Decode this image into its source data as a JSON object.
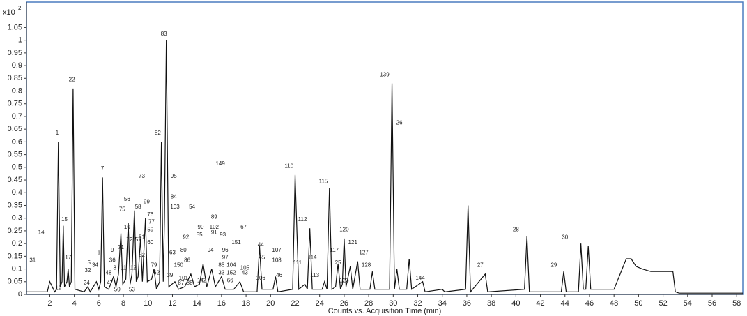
{
  "chart_data": {
    "type": "line",
    "x_label": "Counts vs. Acquisition Time (min)",
    "y_multiplier": "x10",
    "y_multiplier_exp": "2",
    "color": "#111111",
    "frame_color": "#4a7cbf",
    "xlim": [
      0.1,
      58.5
    ],
    "ylim": [
      0,
      1.15
    ],
    "xticks": [
      2,
      4,
      6,
      8,
      10,
      12,
      14,
      16,
      18,
      20,
      22,
      24,
      26,
      28,
      30,
      32,
      34,
      36,
      38,
      40,
      42,
      44,
      46,
      48,
      50,
      52,
      54,
      56,
      58
    ],
    "yticks": [
      0,
      0.05,
      0.1,
      0.15,
      0.2,
      0.25,
      0.3,
      0.35,
      0.4,
      0.45,
      0.5,
      0.55,
      0.6,
      0.65,
      0.7,
      0.75,
      0.8,
      0.85,
      0.9,
      0.95,
      1,
      1.05
    ],
    "x": [
      0.1,
      1.8,
      2.0,
      2.2,
      2.4,
      2.55,
      2.7,
      2.85,
      3.0,
      3.1,
      3.2,
      3.4,
      3.5,
      3.6,
      3.75,
      3.9,
      4.05,
      4.8,
      5.1,
      5.3,
      5.8,
      6.0,
      6.15,
      6.3,
      6.45,
      6.8,
      7.2,
      7.4,
      7.6,
      7.8,
      7.95,
      8.2,
      8.4,
      8.55,
      8.7,
      8.9,
      9.05,
      9.2,
      9.4,
      9.55,
      9.8,
      9.95,
      10.3,
      10.5,
      10.7,
      10.95,
      11.1,
      11.25,
      11.35,
      11.5,
      11.7,
      12.2,
      12.5,
      13.0,
      13.5,
      13.8,
      14.2,
      14.5,
      14.8,
      15.2,
      15.5,
      16.0,
      16.3,
      17.0,
      17.5,
      17.8,
      18.9,
      19.1,
      19.3,
      20.2,
      20.4,
      20.6,
      21.8,
      22.0,
      22.3,
      22.8,
      23.0,
      23.2,
      23.4,
      24.2,
      24.4,
      24.6,
      24.8,
      25.0,
      25.3,
      25.5,
      25.7,
      25.85,
      26.0,
      26.15,
      26.5,
      26.7,
      27.1,
      27.3,
      28.1,
      28.3,
      28.5,
      29.7,
      29.9,
      30.1,
      30.3,
      30.5,
      31.1,
      31.3,
      31.5,
      32.4,
      32.6,
      34,
      34.2,
      35.9,
      36.1,
      36.3,
      37.5,
      37.7,
      40.7,
      40.9,
      41.1,
      43.7,
      43.9,
      44.1,
      45.1,
      45.3,
      45.5,
      45.7,
      45.9,
      46.1,
      48,
      48.5,
      49,
      49.4,
      49.8,
      50.3,
      51,
      52,
      52.8,
      53.0,
      53.3,
      58.5
    ],
    "values": [
      0.01,
      0.01,
      0.05,
      0.03,
      0.01,
      0.02,
      0.6,
      0.03,
      0.05,
      0.27,
      0.03,
      0.05,
      0.1,
      0.03,
      0.05,
      0.81,
      0.02,
      0.01,
      0.03,
      0.01,
      0.05,
      0.02,
      0.05,
      0.46,
      0.03,
      0.02,
      0.07,
      0.03,
      0.08,
      0.24,
      0.04,
      0.06,
      0.28,
      0.04,
      0.08,
      0.33,
      0.05,
      0.07,
      0.22,
      0.05,
      0.3,
      0.05,
      0.06,
      0.1,
      0.02,
      0.05,
      0.6,
      0.05,
      0.3,
      1.0,
      0.03,
      0.05,
      0.02,
      0.03,
      0.08,
      0.03,
      0.04,
      0.12,
      0.03,
      0.1,
      0.03,
      0.07,
      0.02,
      0.02,
      0.05,
      0.01,
      0.01,
      0.19,
      0.02,
      0.02,
      0.07,
      0.01,
      0.02,
      0.47,
      0.02,
      0.04,
      0.02,
      0.26,
      0.02,
      0.02,
      0.05,
      0.02,
      0.42,
      0.02,
      0.03,
      0.12,
      0.02,
      0.04,
      0.22,
      0.03,
      0.11,
      0.02,
      0.13,
      0.02,
      0.02,
      0.09,
      0.02,
      0.02,
      0.83,
      0.02,
      0.1,
      0.02,
      0.02,
      0.14,
      0.02,
      0.05,
      0.01,
      0.02,
      0.01,
      0.02,
      0.35,
      0.01,
      0.08,
      0.01,
      0.02,
      0.23,
      0.01,
      0.01,
      0.09,
      0.01,
      0.01,
      0.2,
      0.02,
      0.02,
      0.19,
      0.02,
      0.02,
      0.08,
      0.14,
      0.14,
      0.11,
      0.1,
      0.09,
      0.09,
      0.09,
      0.01,
      0.005,
      0.005
    ],
    "annotations": [
      {
        "text": "1",
        "x": 2.6,
        "y": 0.62
      },
      {
        "text": "22",
        "x": 3.8,
        "y": 0.83
      },
      {
        "text": "14",
        "x": 1.3,
        "y": 0.23
      },
      {
        "text": "15",
        "x": 3.2,
        "y": 0.28
      },
      {
        "text": "17",
        "x": 3.5,
        "y": 0.13
      },
      {
        "text": "31",
        "x": 0.6,
        "y": 0.12
      },
      {
        "text": "19",
        "x": 2.7,
        "y": 0.01
      },
      {
        "text": "24",
        "x": 5.0,
        "y": 0.03
      },
      {
        "text": "32",
        "x": 5.1,
        "y": 0.08
      },
      {
        "text": "5",
        "x": 5.2,
        "y": 0.11
      },
      {
        "text": "34",
        "x": 5.7,
        "y": 0.1
      },
      {
        "text": "6",
        "x": 6.0,
        "y": 0.15
      },
      {
        "text": "7",
        "x": 6.3,
        "y": 0.48
      },
      {
        "text": "9",
        "x": 7.1,
        "y": 0.16
      },
      {
        "text": "36",
        "x": 7.1,
        "y": 0.12
      },
      {
        "text": "8",
        "x": 7.3,
        "y": 0.09
      },
      {
        "text": "48",
        "x": 6.8,
        "y": 0.07
      },
      {
        "text": "47",
        "x": 6.9,
        "y": 0.03
      },
      {
        "text": "50",
        "x": 7.5,
        "y": 0.005
      },
      {
        "text": "71",
        "x": 7.8,
        "y": 0.17
      },
      {
        "text": "10",
        "x": 8.3,
        "y": 0.25
      },
      {
        "text": "75",
        "x": 7.9,
        "y": 0.32
      },
      {
        "text": "56",
        "x": 8.3,
        "y": 0.36
      },
      {
        "text": "58",
        "x": 9.2,
        "y": 0.33
      },
      {
        "text": "73",
        "x": 9.5,
        "y": 0.45
      },
      {
        "text": "72",
        "x": 8.5,
        "y": 0.2
      },
      {
        "text": "57",
        "x": 9.2,
        "y": 0.2
      },
      {
        "text": "11",
        "x": 8.0,
        "y": 0.09
      },
      {
        "text": "12",
        "x": 8.8,
        "y": 0.09
      },
      {
        "text": "52",
        "x": 9.5,
        "y": 0.14
      },
      {
        "text": "51",
        "x": 9.5,
        "y": 0.21
      },
      {
        "text": "99",
        "x": 9.9,
        "y": 0.35
      },
      {
        "text": "76",
        "x": 10.2,
        "y": 0.3
      },
      {
        "text": "77",
        "x": 10.3,
        "y": 0.27
      },
      {
        "text": "59",
        "x": 10.2,
        "y": 0.24
      },
      {
        "text": "60",
        "x": 10.2,
        "y": 0.19
      },
      {
        "text": "79",
        "x": 10.5,
        "y": 0.1
      },
      {
        "text": "53",
        "x": 8.7,
        "y": 0.005
      },
      {
        "text": "62",
        "x": 10.7,
        "y": 0.07
      },
      {
        "text": "82",
        "x": 10.8,
        "y": 0.62
      },
      {
        "text": "83",
        "x": 11.3,
        "y": 1.01
      },
      {
        "text": "95",
        "x": 12.1,
        "y": 0.45
      },
      {
        "text": "84",
        "x": 12.1,
        "y": 0.37
      },
      {
        "text": "103",
        "x": 12.2,
        "y": 0.33
      },
      {
        "text": "63",
        "x": 12.0,
        "y": 0.15
      },
      {
        "text": "80",
        "x": 12.9,
        "y": 0.16
      },
      {
        "text": "150",
        "x": 12.5,
        "y": 0.1
      },
      {
        "text": "39",
        "x": 11.8,
        "y": 0.06
      },
      {
        "text": "101",
        "x": 12.9,
        "y": 0.05
      },
      {
        "text": "87",
        "x": 12.7,
        "y": 0.03
      },
      {
        "text": "88",
        "x": 13.4,
        "y": 0.03
      },
      {
        "text": "92",
        "x": 13.1,
        "y": 0.21
      },
      {
        "text": "86",
        "x": 13.2,
        "y": 0.12
      },
      {
        "text": "54",
        "x": 13.6,
        "y": 0.33
      },
      {
        "text": "55",
        "x": 14.2,
        "y": 0.22
      },
      {
        "text": "90",
        "x": 14.3,
        "y": 0.25
      },
      {
        "text": "149",
        "x": 15.9,
        "y": 0.5
      },
      {
        "text": "89",
        "x": 15.4,
        "y": 0.29
      },
      {
        "text": "91",
        "x": 15.4,
        "y": 0.23
      },
      {
        "text": "102",
        "x": 15.4,
        "y": 0.25
      },
      {
        "text": "93",
        "x": 16.1,
        "y": 0.22
      },
      {
        "text": "94",
        "x": 15.1,
        "y": 0.16
      },
      {
        "text": "96",
        "x": 16.3,
        "y": 0.16
      },
      {
        "text": "97",
        "x": 16.3,
        "y": 0.13
      },
      {
        "text": "85",
        "x": 16.0,
        "y": 0.1
      },
      {
        "text": "151",
        "x": 17.2,
        "y": 0.19
      },
      {
        "text": "104",
        "x": 16.8,
        "y": 0.1
      },
      {
        "text": "152",
        "x": 16.8,
        "y": 0.07
      },
      {
        "text": "33",
        "x": 16.0,
        "y": 0.07
      },
      {
        "text": "66",
        "x": 16.7,
        "y": 0.04
      },
      {
        "text": "142",
        "x": 14.4,
        "y": 0.04
      },
      {
        "text": "105",
        "x": 17.9,
        "y": 0.09
      },
      {
        "text": "43",
        "x": 17.9,
        "y": 0.07
      },
      {
        "text": "67",
        "x": 17.8,
        "y": 0.25
      },
      {
        "text": "44",
        "x": 19.2,
        "y": 0.18
      },
      {
        "text": "45",
        "x": 19.3,
        "y": 0.13
      },
      {
        "text": "106",
        "x": 19.2,
        "y": 0.05
      },
      {
        "text": "107",
        "x": 20.5,
        "y": 0.16
      },
      {
        "text": "108",
        "x": 20.5,
        "y": 0.12
      },
      {
        "text": "46",
        "x": 20.7,
        "y": 0.06
      },
      {
        "text": "110",
        "x": 21.5,
        "y": 0.49
      },
      {
        "text": "112",
        "x": 22.6,
        "y": 0.28
      },
      {
        "text": "111",
        "x": 22.2,
        "y": 0.11
      },
      {
        "text": "113",
        "x": 23.6,
        "y": 0.06
      },
      {
        "text": "114",
        "x": 23.4,
        "y": 0.13
      },
      {
        "text": "115",
        "x": 24.3,
        "y": 0.43
      },
      {
        "text": "117",
        "x": 25.2,
        "y": 0.16
      },
      {
        "text": "25",
        "x": 25.5,
        "y": 0.11
      },
      {
        "text": "120",
        "x": 26.0,
        "y": 0.24
      },
      {
        "text": "121",
        "x": 26.7,
        "y": 0.19
      },
      {
        "text": "123",
        "x": 26.0,
        "y": 0.04
      },
      {
        "text": "127",
        "x": 27.6,
        "y": 0.15
      },
      {
        "text": "128",
        "x": 27.8,
        "y": 0.1
      },
      {
        "text": "139",
        "x": 29.3,
        "y": 0.85
      },
      {
        "text": "26",
        "x": 30.5,
        "y": 0.66
      },
      {
        "text": "144",
        "x": 32.2,
        "y": 0.05
      },
      {
        "text": "27",
        "x": 37.1,
        "y": 0.1
      },
      {
        "text": "28",
        "x": 40.0,
        "y": 0.24
      },
      {
        "text": "29",
        "x": 43.1,
        "y": 0.1
      },
      {
        "text": "30",
        "x": 44.0,
        "y": 0.21
      }
    ]
  }
}
